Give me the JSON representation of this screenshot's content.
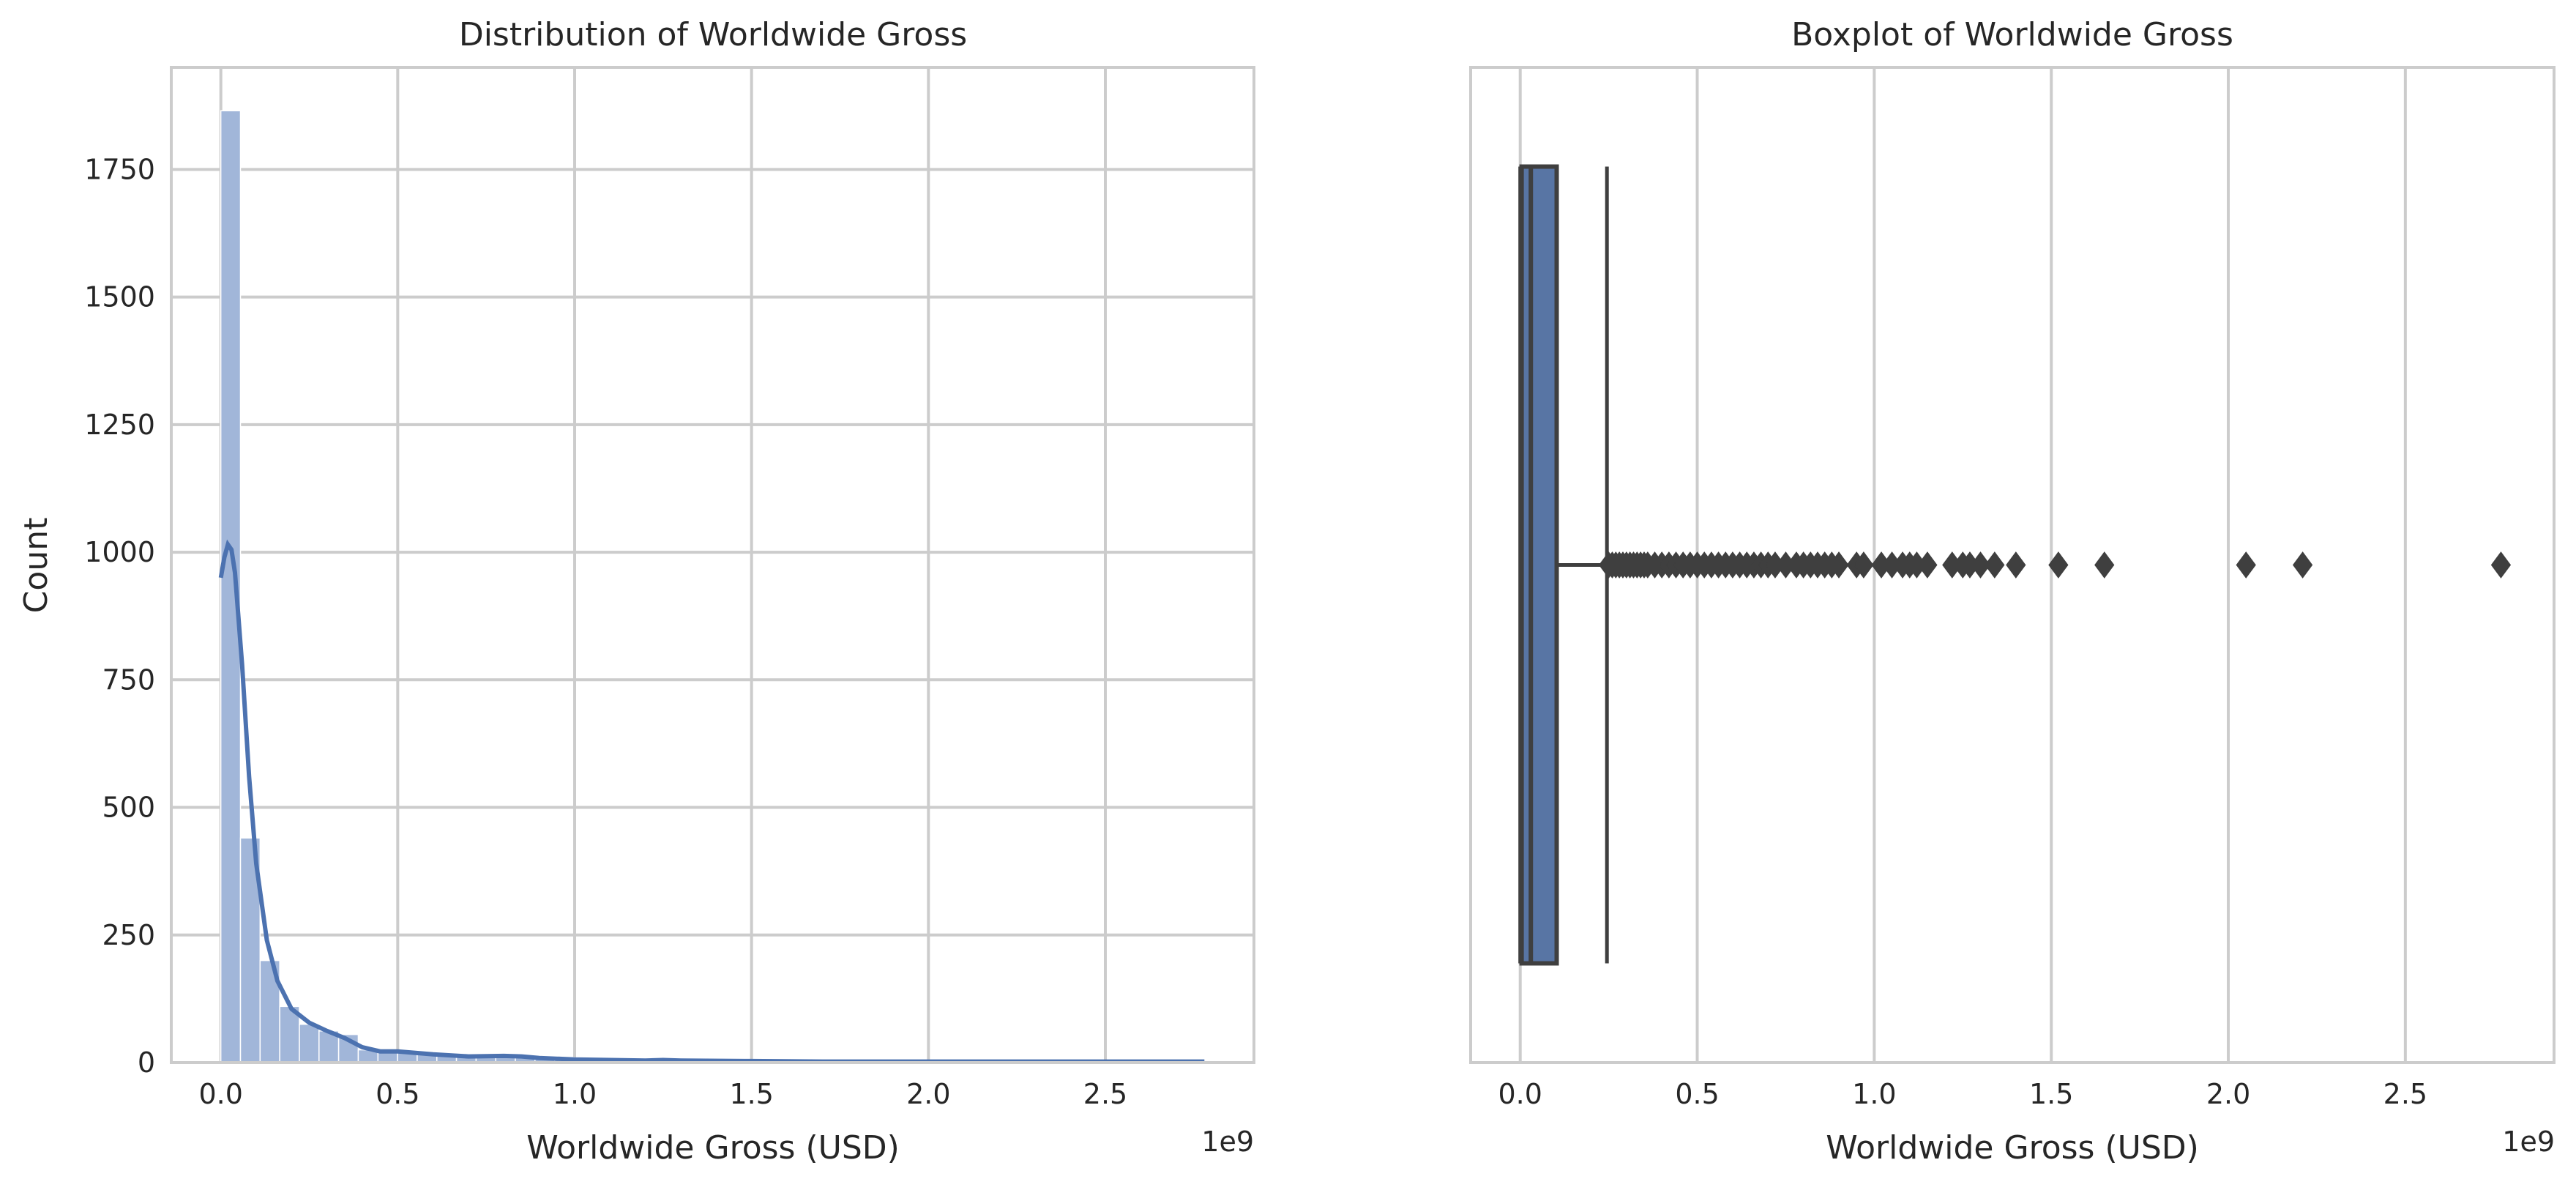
{
  "chart_data": [
    {
      "type": "histogram",
      "title": "Distribution of Worldwide Gross",
      "xlabel": "Worldwide Gross (USD)",
      "ylabel": "Count",
      "x_offset_label": "1e9",
      "x_scale": 1000000000,
      "xlim": [
        -0.14,
        2.92
      ],
      "ylim": [
        0,
        1950
      ],
      "x_ticks": [
        0.0,
        0.5,
        1.0,
        1.5,
        2.0,
        2.5
      ],
      "x_tick_labels": [
        "0.0",
        "0.5",
        "1.0",
        "1.5",
        "2.0",
        "2.5"
      ],
      "y_ticks": [
        0,
        250,
        500,
        750,
        1000,
        1250,
        1500,
        1750
      ],
      "y_tick_labels": [
        "0",
        "250",
        "500",
        "750",
        "1000",
        "1250",
        "1500",
        "1750"
      ],
      "grid": true,
      "bin_width": 0.0555,
      "bin_start": 0.0,
      "counts": [
        1865,
        440,
        200,
        110,
        75,
        62,
        55,
        25,
        22,
        22,
        18,
        15,
        12,
        12,
        10,
        10,
        12,
        10,
        6,
        6,
        6,
        5,
        5,
        4,
        5,
        4,
        3,
        3,
        3,
        2,
        2,
        2,
        2,
        2,
        2,
        1,
        1,
        1,
        1,
        1,
        1,
        1,
        1,
        1,
        1,
        1,
        1,
        1,
        1,
        1
      ],
      "kde": {
        "x": [
          0.0,
          0.01,
          0.02,
          0.03,
          0.04,
          0.06,
          0.08,
          0.1,
          0.13,
          0.16,
          0.2,
          0.25,
          0.3,
          0.35,
          0.4,
          0.45,
          0.5,
          0.6,
          0.7,
          0.8,
          0.85,
          0.9,
          1.0,
          1.1,
          1.2,
          1.25,
          1.3,
          1.5,
          1.7,
          2.0,
          2.3,
          2.6,
          2.78
        ],
        "y": [
          950,
          990,
          1015,
          1005,
          960,
          780,
          560,
          390,
          240,
          160,
          105,
          78,
          62,
          48,
          30,
          22,
          22,
          16,
          12,
          13,
          12,
          9,
          6,
          5,
          4,
          5,
          4,
          3,
          2,
          2,
          2,
          2,
          2
        ]
      },
      "colors": {
        "bars": "#a1b6d9",
        "kde": "#4c72b0"
      }
    },
    {
      "type": "boxplot",
      "title": "Boxplot of Worldwide Gross",
      "xlabel": "Worldwide Gross (USD)",
      "x_offset_label": "1e9",
      "x_scale": 1000000000,
      "xlim": [
        -0.14,
        2.92
      ],
      "x_ticks": [
        0.0,
        0.5,
        1.0,
        1.5,
        2.0,
        2.5
      ],
      "x_tick_labels": [
        "0.0",
        "0.5",
        "1.0",
        "1.5",
        "2.0",
        "2.5"
      ],
      "grid": true,
      "box": {
        "min": 0.0,
        "q1": 0.004,
        "median": 0.03,
        "q3": 0.103,
        "whisker_high": 0.245
      },
      "outliers": [
        0.25,
        0.26,
        0.27,
        0.28,
        0.29,
        0.3,
        0.31,
        0.32,
        0.33,
        0.34,
        0.35,
        0.36,
        0.38,
        0.4,
        0.42,
        0.44,
        0.46,
        0.48,
        0.5,
        0.52,
        0.54,
        0.56,
        0.58,
        0.6,
        0.62,
        0.64,
        0.66,
        0.68,
        0.7,
        0.72,
        0.75,
        0.78,
        0.8,
        0.82,
        0.84,
        0.86,
        0.88,
        0.9,
        0.95,
        0.97,
        1.02,
        1.05,
        1.08,
        1.1,
        1.12,
        1.15,
        1.22,
        1.25,
        1.27,
        1.3,
        1.34,
        1.4,
        1.52,
        1.65,
        2.05,
        2.21,
        2.77
      ],
      "colors": {
        "box": "#5875a4",
        "lines": "#3f3f3f"
      }
    }
  ]
}
